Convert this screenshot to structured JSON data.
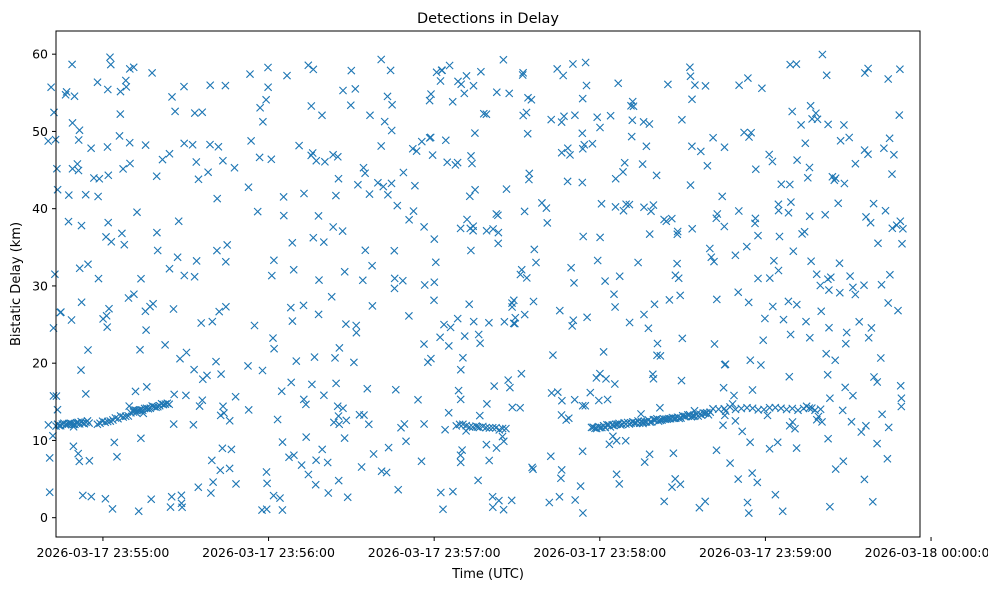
{
  "chart_data": {
    "type": "scatter",
    "title": "Detections in Delay",
    "xlabel": "Time (UTC)",
    "ylabel": "Bistatic Delay (km)",
    "x_start": "2026-03-17 23:54:40",
    "x_end": "2026-03-17 23:59:50",
    "xlim": [
      "2026-03-17 23:54:43",
      "2026-03-17 23:59:56"
    ],
    "ylim": [
      -2.5,
      63
    ],
    "x_ticks": [
      "2026-03-17 23:55:00",
      "2026-03-17 23:56:00",
      "2026-03-17 23:57:00",
      "2026-03-17 23:58:00",
      "2026-03-17 23:59:00",
      "2026-03-18 00:00:00"
    ],
    "y_ticks": [
      0,
      10,
      20,
      30,
      40,
      50,
      60
    ],
    "marker": "x",
    "color": "#1f77b4",
    "grid": false,
    "noise": {
      "count": 760,
      "y_range": [
        0.5,
        60
      ]
    },
    "tracks": [
      {
        "start": "2026-03-17 23:54:43",
        "end": "2026-03-17 23:54:55",
        "y_start": 12.0,
        "y_end": 12.4,
        "count": 22
      },
      {
        "start": "2026-03-17 23:54:58",
        "end": "2026-03-17 23:55:12",
        "y_start": 12.2,
        "y_end": 13.6,
        "count": 16
      },
      {
        "start": "2026-03-17 23:55:11",
        "end": "2026-03-17 23:55:24",
        "y_start": 13.8,
        "y_end": 14.8,
        "count": 20
      },
      {
        "start": "2026-03-17 23:57:08",
        "end": "2026-03-17 23:57:26",
        "y_start": 12.0,
        "y_end": 11.4,
        "count": 16
      },
      {
        "start": "2026-03-17 23:57:57",
        "end": "2026-03-17 23:58:40",
        "y_start": 11.6,
        "y_end": 13.5,
        "count": 70
      },
      {
        "start": "2026-03-17 23:58:41",
        "end": "2026-03-17 23:59:20",
        "y_start": 14.2,
        "y_end": 14.0,
        "count": 20
      }
    ]
  }
}
